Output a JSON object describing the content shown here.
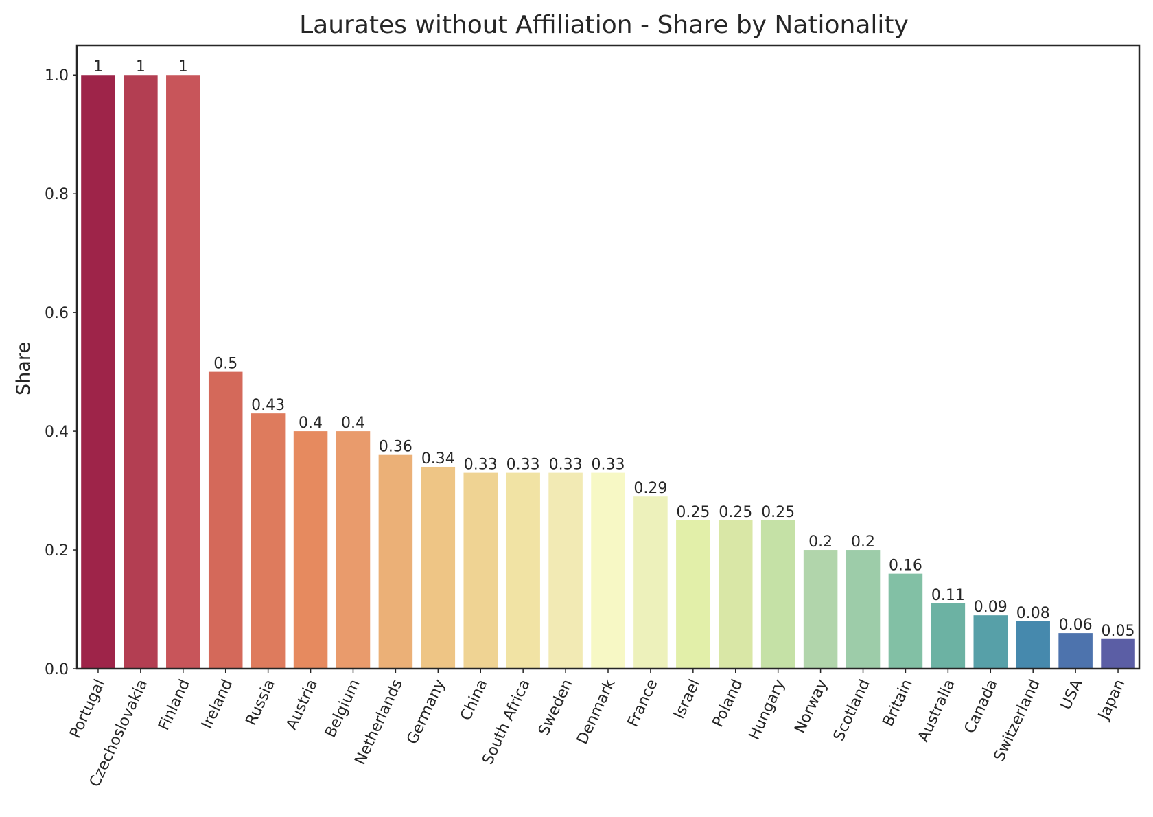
{
  "chart_data": {
    "type": "bar",
    "title": "Laurates without Affiliation - Share by Nationality",
    "xlabel": "",
    "ylabel": "Share",
    "ylim": [
      0,
      1.05
    ],
    "yticks": [
      "0.0",
      "0.2",
      "0.4",
      "0.6",
      "0.8",
      "1.0"
    ],
    "grid": false,
    "categories": [
      "Portugal",
      "Czechoslovakia",
      "Finland",
      "Ireland",
      "Russia",
      "Austria",
      "Belgium",
      "Netherlands",
      "Germany",
      "China",
      "South Africa",
      "Sweden",
      "Denmark",
      "France",
      "Israel",
      "Poland",
      "Hungary",
      "Norway",
      "Scotland",
      "Britain",
      "Australia",
      "Canada",
      "Switzerland",
      "USA",
      "Japan"
    ],
    "values": [
      1,
      1,
      1,
      0.5,
      0.43,
      0.4,
      0.4,
      0.36,
      0.34,
      0.33,
      0.33,
      0.33,
      0.33,
      0.29,
      0.25,
      0.25,
      0.25,
      0.2,
      0.2,
      0.16,
      0.11,
      0.09,
      0.08,
      0.06,
      0.05
    ],
    "data_labels": [
      "1",
      "1",
      "1",
      "0.5",
      "0.43",
      "0.4",
      "0.4",
      "0.36",
      "0.34",
      "0.33",
      "0.33",
      "0.33",
      "0.33",
      "0.29",
      "0.25",
      "0.25",
      "0.25",
      "0.2",
      "0.2",
      "0.16",
      "0.11",
      "0.09",
      "0.08",
      "0.06",
      "0.05"
    ],
    "colors": [
      "#9e2449",
      "#b33e52",
      "#c8555a",
      "#d4695a",
      "#de7b5d",
      "#e68a5f",
      "#e99b6c",
      "#ebb077",
      "#eec585",
      "#efd393",
      "#f1e3a4",
      "#f2eab4",
      "#f7f8c5",
      "#edf1bb",
      "#e2efa9",
      "#d9e7a6",
      "#c5e1a6",
      "#b1d5ab",
      "#9dcca9",
      "#82c0a5",
      "#6cb2a3",
      "#57a0a8",
      "#4689ad",
      "#4d73ad",
      "#5b5ea5"
    ]
  }
}
